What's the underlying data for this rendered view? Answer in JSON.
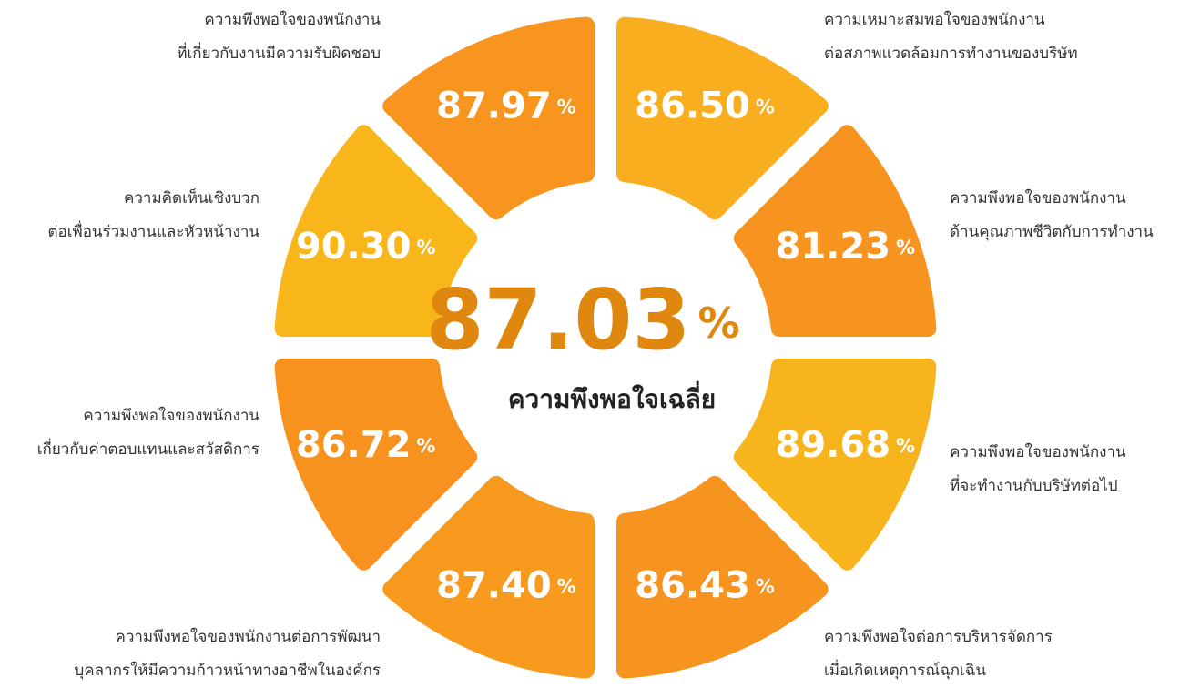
{
  "center": {
    "value": "87.03",
    "unit": "%",
    "label": "ความพึงพอใจเฉลี่ย"
  },
  "segments": [
    {
      "value": "86.50",
      "unit": "%",
      "color": "#f8ae1f",
      "label": [
        "ความเหมาะสมพอใจของพนักงาน",
        "ต่อสภาพแวดล้อมการทำงานของบริษัท"
      ]
    },
    {
      "value": "81.23",
      "unit": "%",
      "color": "#f7941f",
      "label": [
        "ความพึงพอใจของพนักงาน",
        "ด้านคุณภาพชีวิตกับการทำงาน"
      ]
    },
    {
      "value": "89.68",
      "unit": "%",
      "color": "#f8b41c",
      "label": [
        "ความพึงพอใจของพนักงาน",
        "ที่จะทำงานกับบริษัทต่อไป"
      ]
    },
    {
      "value": "86.43",
      "unit": "%",
      "color": "#f7931f",
      "label": [
        "ความพึงพอใจต่อการบริหารจัดการ",
        "เมื่อเกิดเหตุการณ์ฉุกเฉิน"
      ]
    },
    {
      "value": "87.40",
      "unit": "%",
      "color": "#f79a1e",
      "label": [
        "ความพึงพอใจของพนักงานต่อการพัฒนา",
        "บุคลากรให้มีความก้าวหน้าทางอาชีพในองค์กร"
      ]
    },
    {
      "value": "86.72",
      "unit": "%",
      "color": "#f7921f",
      "label": [
        "ความพึงพอใจของพนักงาน",
        "เกี่ยวกับค่าตอบแทนและสวัสดิการ"
      ]
    },
    {
      "value": "90.30",
      "unit": "%",
      "color": "#f8b61b",
      "label": [
        "ความคิดเห็นเชิงบวก",
        "ต่อเพื่อนร่วมงานและหัวหน้างาน"
      ]
    },
    {
      "value": "87.97",
      "unit": "%",
      "color": "#f7951f",
      "label": [
        "ความพึงพอใจของพนักงาน",
        "ที่เกี่ยวกับงานมีความรับผิดชอบ"
      ]
    }
  ]
}
